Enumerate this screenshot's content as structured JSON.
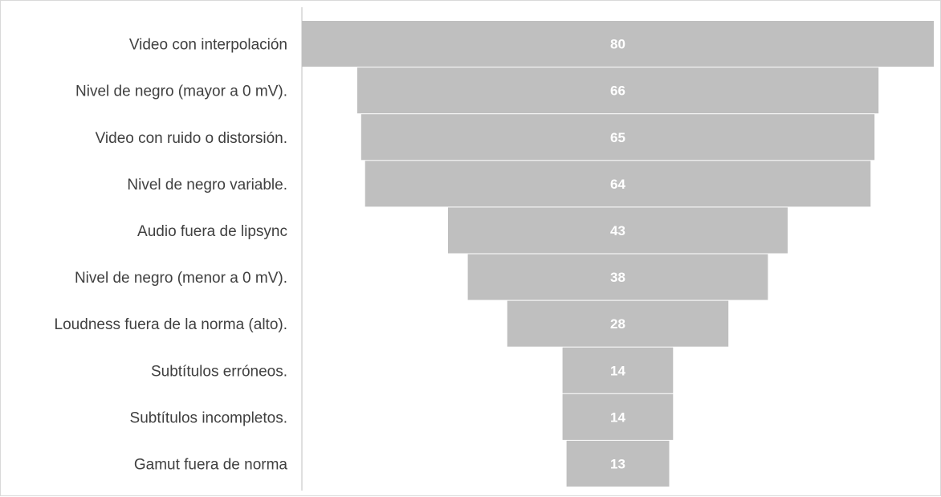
{
  "chart_data": {
    "type": "bar",
    "orientation": "horizontal-funnel",
    "categories": [
      "Video con interpolación",
      "Nivel de negro (mayor a 0 mV).",
      "Video con ruido o distorsión.",
      "Nivel de negro variable.",
      "Audio fuera de lipsync",
      "Nivel de negro (menor a 0 mV).",
      "Loudness fuera de la norma (alto).",
      "Subtítulos erróneos.",
      "Subtítulos incompletos.",
      "Gamut fuera de norma"
    ],
    "values": [
      80,
      66,
      65,
      64,
      43,
      38,
      28,
      14,
      14,
      13
    ],
    "xlim": [
      0,
      80
    ],
    "grid": false,
    "legend": "none",
    "bar_color": "#bfbfbf",
    "value_label_color": "#ffffff",
    "category_label_color": "#404040",
    "axis_line_color": "#bfbfbf"
  }
}
